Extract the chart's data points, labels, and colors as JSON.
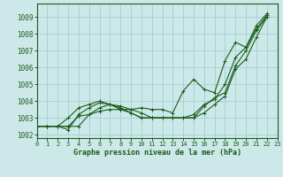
{
  "xlabel": "Graphe pression niveau de la mer (hPa)",
  "xlim": [
    0,
    23
  ],
  "ylim": [
    1001.8,
    1009.8
  ],
  "yticks": [
    1002,
    1003,
    1004,
    1005,
    1006,
    1007,
    1008,
    1009
  ],
  "xticks": [
    0,
    1,
    2,
    3,
    4,
    5,
    6,
    7,
    8,
    9,
    10,
    11,
    12,
    13,
    14,
    15,
    16,
    17,
    18,
    19,
    20,
    21,
    22,
    23
  ],
  "bg_color": "#cce8e8",
  "grid_color": "#99cccc",
  "line_color": "#1a5c1a",
  "series": [
    [
      1002.5,
      1002.5,
      1002.5,
      1002.5,
      1002.5,
      1003.2,
      1003.6,
      1003.8,
      1003.7,
      1003.5,
      1003.3,
      1003.0,
      1003.0,
      1003.0,
      1003.0,
      1003.2,
      1003.8,
      1004.1,
      1005.0,
      1006.6,
      1007.2,
      1008.3,
      1009.1
    ],
    [
      1002.5,
      1002.5,
      1002.5,
      1002.3,
      1003.2,
      1003.6,
      1003.9,
      1003.8,
      1003.5,
      1003.5,
      1003.6,
      1003.5,
      1003.5,
      1003.3,
      1004.6,
      1005.3,
      1004.7,
      1004.5,
      1006.4,
      1007.5,
      1007.2,
      1008.5,
      1009.2
    ],
    [
      1002.5,
      1002.5,
      1002.5,
      1003.0,
      1003.6,
      1003.8,
      1004.0,
      1003.8,
      1003.6,
      1003.3,
      1003.0,
      1003.0,
      1003.0,
      1003.0,
      1003.0,
      1003.0,
      1003.7,
      1004.2,
      1004.5,
      1006.1,
      1007.0,
      1008.2,
      1009.0
    ],
    [
      1002.5,
      1002.5,
      1002.5,
      1002.5,
      1003.1,
      1003.2,
      1003.4,
      1003.5,
      1003.5,
      1003.3,
      1003.0,
      1003.0,
      1003.0,
      1003.0,
      1003.0,
      1003.0,
      1003.3,
      1003.8,
      1004.3,
      1005.9,
      1006.5,
      1007.8,
      1009.0
    ]
  ]
}
